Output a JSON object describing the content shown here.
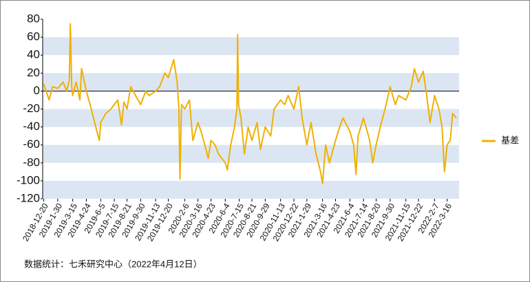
{
  "chart_data": {
    "type": "line",
    "source": "数据统计：七禾研究中心（2022年4月12日）",
    "x": [
      "2018-12-20",
      "2019-1-5",
      "2019-1-15",
      "2019-1-30",
      "2019-2-15",
      "2019-2-25",
      "2019-3-5",
      "2019-3-8",
      "2019-3-12",
      "2019-3-15",
      "2019-3-25",
      "2019-4-5",
      "2019-4-10",
      "2019-4-24",
      "2019-5-5",
      "2019-5-15",
      "2019-5-25",
      "2019-6-1",
      "2019-6-5",
      "2019-6-20",
      "2019-7-5",
      "2019-7-15",
      "2019-7-25",
      "2019-8-5",
      "2019-8-12",
      "2019-8-21",
      "2019-9-1",
      "2019-9-15",
      "2019-9-30",
      "2019-10-15",
      "2019-10-25",
      "2019-11-13",
      "2019-11-25",
      "2019-12-10",
      "2019-12-20",
      "2020-1-5",
      "2020-1-15",
      "2020-1-20",
      "2020-1-23",
      "2020-1-28",
      "2020-2-6",
      "2020-2-20",
      "2020-3-1",
      "2020-3-16",
      "2020-3-25",
      "2020-4-5",
      "2020-4-15",
      "2020-4-23",
      "2020-5-5",
      "2020-5-15",
      "2020-6-4",
      "2020-6-10",
      "2020-6-20",
      "2020-7-1",
      "2020-7-8",
      "2020-7-10",
      "2020-7-13",
      "2020-7-20",
      "2020-7-30",
      "2020-8-10",
      "2020-8-21",
      "2020-9-5",
      "2020-9-15",
      "2020-9-29",
      "2020-10-15",
      "2020-10-25",
      "2020-11-13",
      "2020-11-25",
      "2020-12-5",
      "2020-12-22",
      "2021-1-5",
      "2021-1-15",
      "2021-1-29",
      "2021-2-10",
      "2021-2-25",
      "2021-3-10",
      "2021-3-16",
      "2021-3-25",
      "2021-4-5",
      "2021-4-23",
      "2021-5-5",
      "2021-5-15",
      "2021-6-4",
      "2021-6-15",
      "2021-6-22",
      "2021-6-28",
      "2021-7-14",
      "2021-8-1",
      "2021-8-10",
      "2021-8-20",
      "2021-9-1",
      "2021-9-15",
      "2021-9-30",
      "2021-10-15",
      "2021-10-25",
      "2021-11-15",
      "2021-12-1",
      "2021-12-10",
      "2021-12-22",
      "2022-1-5",
      "2022-1-15",
      "2022-1-25",
      "2022-2-7",
      "2022-2-20",
      "2022-3-1",
      "2022-3-8",
      "2022-3-16",
      "2022-3-25",
      "2022-4-1",
      "2022-4-12"
    ],
    "series": [
      {
        "name": "基差",
        "color": "#f0b000",
        "values": [
          8,
          -10,
          5,
          3,
          10,
          0,
          12,
          75,
          5,
          -5,
          10,
          -10,
          25,
          0,
          -15,
          -30,
          -45,
          -55,
          -35,
          -25,
          -20,
          -15,
          -10,
          -38,
          -12,
          -20,
          5,
          -5,
          -15,
          0,
          -5,
          0,
          5,
          20,
          15,
          35,
          10,
          -20,
          -98,
          -15,
          -20,
          -10,
          -55,
          -35,
          -45,
          -60,
          -75,
          -55,
          -60,
          -70,
          -80,
          -88,
          -60,
          -40,
          -20,
          63,
          -15,
          -30,
          -70,
          -40,
          -55,
          -35,
          -65,
          -40,
          -50,
          -20,
          -10,
          -15,
          -5,
          -20,
          5,
          -30,
          -60,
          -35,
          -70,
          -90,
          -103,
          -60,
          -80,
          -55,
          -40,
          -30,
          -45,
          -60,
          -93,
          -50,
          -30,
          -55,
          -80,
          -60,
          -40,
          -20,
          5,
          -15,
          -5,
          -10,
          5,
          25,
          10,
          22,
          -5,
          -35,
          -5,
          -20,
          -40,
          -90,
          -60,
          -55,
          -25,
          -30
        ]
      }
    ],
    "xlim": [
      "2018-12-17",
      "2022-4-20"
    ],
    "xticks": [
      "2018-12-20",
      "2019-1-30",
      "2019-3-15",
      "2019-4-24",
      "2019-6-5",
      "2019-7-15",
      "2019-8-21",
      "2019-9-30",
      "2019-11-13",
      "2019-12-20",
      "2020-2-6",
      "2020-3-16",
      "2020-4-23",
      "2020-6-4",
      "2020-7-15",
      "2020-8-21",
      "2020-9-29",
      "2020-11-13",
      "2020-12-22",
      "2021-1-29",
      "2021-3-16",
      "2021-4-23",
      "2021-6-4",
      "2021-7-14",
      "2021-8-20",
      "2021-9-30",
      "2021-11-15",
      "2021-12-22",
      "2022-2-7",
      "2022-3-16"
    ],
    "ylim": [
      -120,
      80
    ],
    "yticks": [
      -120,
      -100,
      -80,
      -60,
      -40,
      -20,
      0,
      20,
      40,
      60,
      80
    ],
    "legend": "right"
  }
}
